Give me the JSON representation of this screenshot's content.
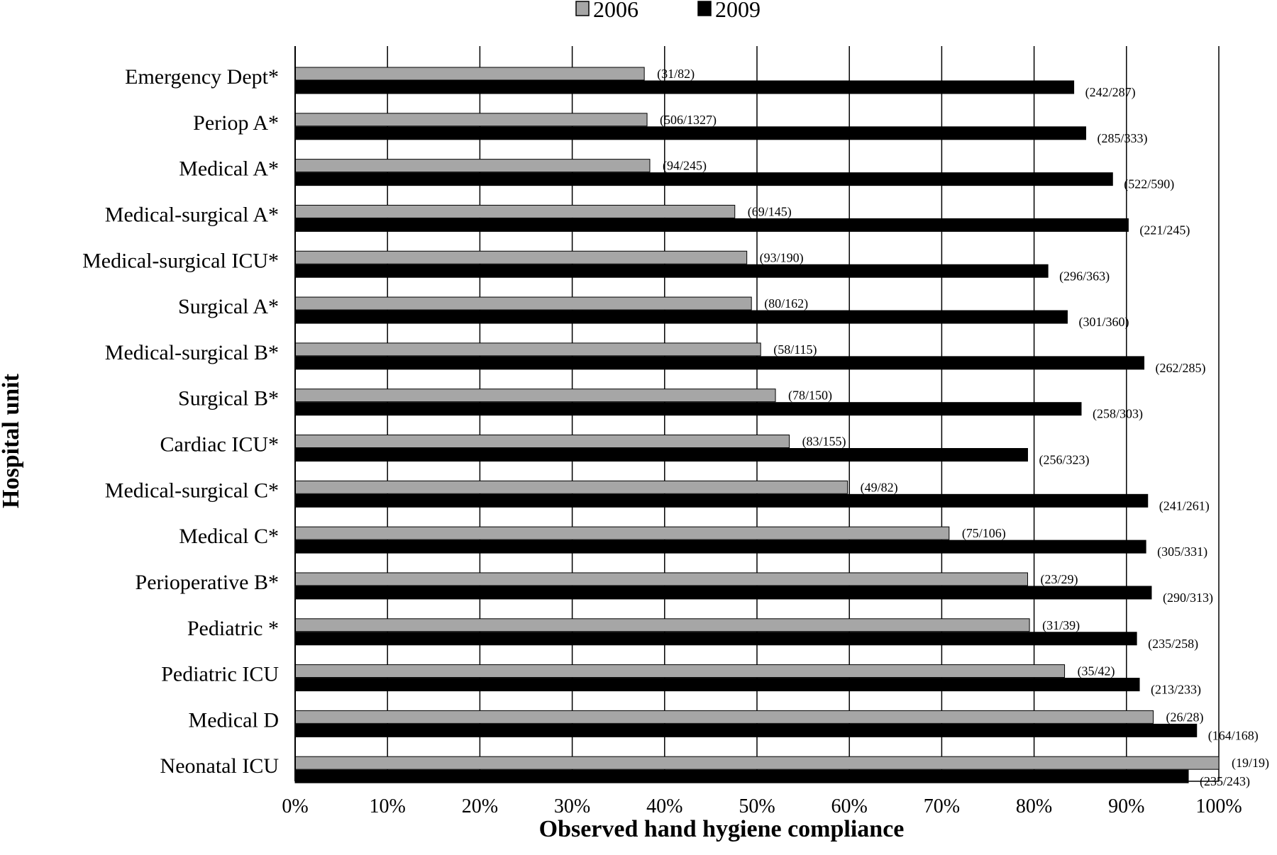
{
  "chart_data": {
    "type": "bar",
    "orientation": "horizontal",
    "xlabel": "Observed hand hygiene compliance",
    "ylabel": "Hospital unit",
    "xlim": [
      0,
      100
    ],
    "x_ticks": [
      "0%",
      "10%",
      "20%",
      "30%",
      "40%",
      "50%",
      "60%",
      "70%",
      "80%",
      "90%",
      "100%"
    ],
    "grid": "vertical",
    "legend_position": "top-center",
    "categories": [
      "Emergency Dept*",
      "Periop A*",
      "Medical A*",
      "Medical-surgical A*",
      "Medical-surgical ICU*",
      "Surgical A*",
      "Medical-surgical B*",
      "Surgical B*",
      "Cardiac ICU*",
      "Medical-surgical C*",
      "Medical C*",
      "Perioperative B*",
      "Pediatric *",
      "Pediatric ICU",
      "Medical D",
      "Neonatal ICU"
    ],
    "series": [
      {
        "name": "2006",
        "color": "#a6a6a6",
        "values": [
          37.8,
          38.1,
          38.4,
          47.6,
          48.9,
          49.4,
          50.4,
          52.0,
          53.5,
          59.8,
          70.8,
          79.3,
          79.5,
          83.3,
          92.9,
          100.0
        ],
        "labels": [
          "(31/82)",
          "(506/1327)",
          "(94/245)",
          "(69/145)",
          "(93/190)",
          "(80/162)",
          "(58/115)",
          "(78/150)",
          "(83/155)",
          "(49/82)",
          "(75/106)",
          "(23/29)",
          "(31/39)",
          "(35/42)",
          "(26/28)",
          "(19/19)"
        ]
      },
      {
        "name": "2009",
        "color": "#000000",
        "values": [
          84.3,
          85.6,
          88.5,
          90.2,
          81.5,
          83.6,
          91.9,
          85.1,
          79.3,
          92.3,
          92.1,
          92.7,
          91.1,
          91.4,
          97.6,
          96.7
        ],
        "labels": [
          "(242/287)",
          "(285/333)",
          "(522/590)",
          "(221/245)",
          "(296/363)",
          "(301/360)",
          "(262/285)",
          "(258/303)",
          "(256/323)",
          "(241/261)",
          "(305/331)",
          "(290/313)",
          "(235/258)",
          "(213/233)",
          "(164/168)",
          "(235/243)"
        ]
      }
    ]
  }
}
